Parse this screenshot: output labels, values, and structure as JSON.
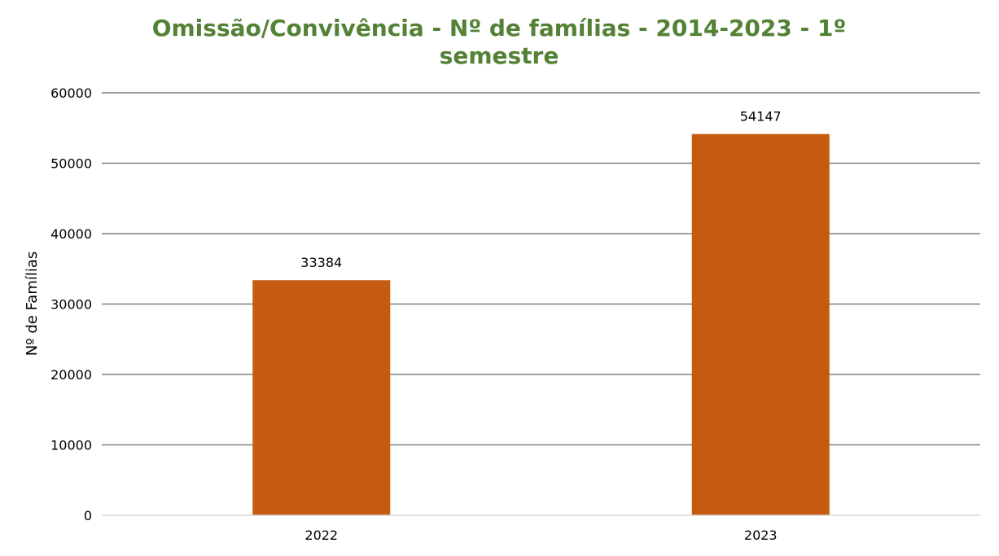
{
  "chart_data": {
    "type": "bar",
    "title_line1": "Omissão/Convivência - Nº de famílias - 2014-2023 - 1º",
    "title_line2": "semestre",
    "title_color": "#538135",
    "ylabel": "Nº de Famílias",
    "xlabel": "",
    "categories": [
      "2022",
      "2023"
    ],
    "values": [
      33384,
      54147
    ],
    "data_labels": [
      "33384",
      "54147"
    ],
    "ylim": [
      0,
      60000
    ],
    "yticks": [
      0,
      10000,
      20000,
      30000,
      40000,
      50000,
      60000
    ],
    "ytick_labels": [
      "0",
      "10000",
      "20000",
      "30000",
      "40000",
      "50000",
      "60000"
    ],
    "bar_color": "#c55a11",
    "grid": true,
    "grid_color": "#7f7f7f",
    "legend": false
  }
}
